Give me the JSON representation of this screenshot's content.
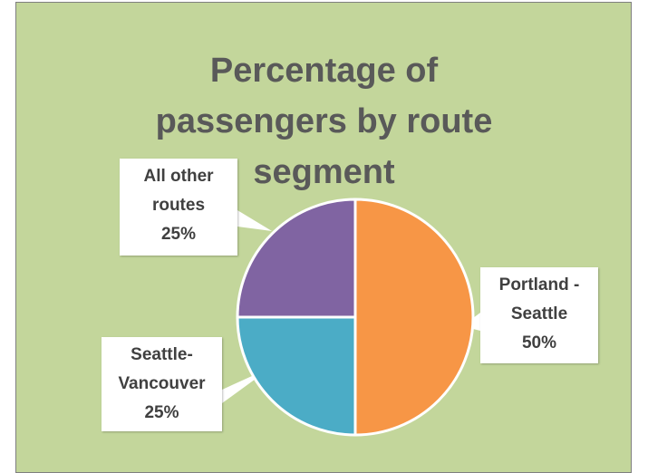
{
  "chart_data": {
    "type": "pie",
    "title": "Percentage of passengers by route segment",
    "categories": [
      "Portland - Seattle",
      "Seattle-Vancouver",
      "All other routes"
    ],
    "values": [
      50,
      25,
      25
    ],
    "value_labels": [
      "50%",
      "25%",
      "25%"
    ],
    "colors": [
      "#f79646",
      "#4bacc6",
      "#8064a2"
    ]
  }
}
